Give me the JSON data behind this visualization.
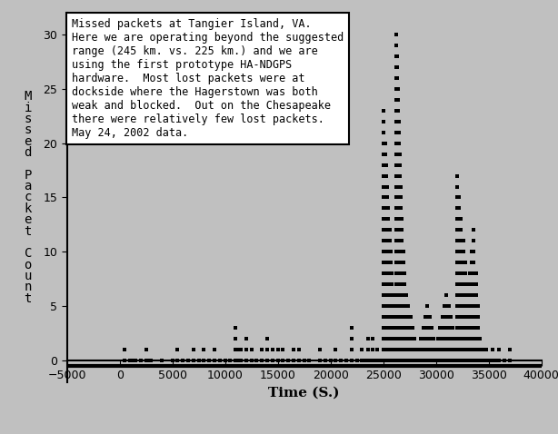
{
  "background_color": "#c0c0c0",
  "plot_bg_color": "#c0c0c0",
  "xlabel": "Time (S.)",
  "ylabel": "M\ni\ns\ns\ne\nd\n\nP\na\nc\nk\ne\nt\n\nC\no\nu\nn\nt",
  "xlim": [
    -5000,
    40000
  ],
  "ylim": [
    -2,
    32
  ],
  "xticks": [
    -5000,
    0,
    5000,
    10000,
    15000,
    20000,
    25000,
    30000,
    35000,
    40000
  ],
  "yticks": [
    0,
    5,
    10,
    15,
    20,
    25,
    30
  ],
  "annotation_text": "Missed packets at Tangier Island, VA.\nHere we are operating beyond the suggested\nrange (245 km. vs. 225 km.) and we are\nusing the first prototype HA-NDGPS\nhardware.  Most lost packets were at\ndockside where the Hagerstown was both\nweak and blocked.  Out on the Chesapeake\nthere were relatively few lost packets.\nMay 24, 2002 data.",
  "spine_y": -0.5,
  "data_x": [
    500,
    1000,
    1200,
    1500,
    2000,
    2500,
    2600,
    3000,
    4000,
    5000,
    5500,
    6000,
    6500,
    7000,
    7500,
    8000,
    8500,
    9000,
    9500,
    10000,
    10500,
    11000,
    11200,
    11500,
    12000,
    12500,
    13000,
    13500,
    14000,
    14500,
    15000,
    15500,
    16000,
    16500,
    17000,
    17500,
    18000,
    19000,
    19500,
    20000,
    20500,
    21000,
    21500,
    22000,
    22500,
    23000,
    23200,
    23400,
    23600,
    23800,
    24000,
    24200,
    24400,
    24600,
    24800,
    25000,
    25200,
    25300,
    25400,
    25500,
    25600,
    25700,
    25800,
    25900,
    26000,
    26100,
    26200,
    26300,
    26400,
    26500,
    26600,
    26700,
    26800,
    26900,
    27000,
    27200,
    27400,
    27600,
    27800,
    28000,
    28200,
    28400,
    28600,
    28800,
    29000,
    29200,
    29400,
    29600,
    29800,
    30000,
    30200,
    30400,
    30600,
    30800,
    31000,
    31200,
    31400,
    31600,
    31800,
    32000,
    32200,
    32400,
    32600,
    32800,
    33000,
    33200,
    33400,
    33600,
    33800,
    34000,
    34200,
    34400,
    34600,
    34800,
    35000,
    35200,
    35400,
    35600,
    36000,
    36500,
    37000
  ],
  "data_y": [
    1,
    0,
    0,
    0,
    0,
    1,
    0,
    0,
    0,
    0,
    1,
    0,
    0,
    1,
    0,
    1,
    0,
    1,
    0,
    0,
    0,
    3,
    1,
    1,
    2,
    1,
    0,
    1,
    2,
    1,
    1,
    1,
    0,
    1,
    1,
    0,
    0,
    1,
    0,
    0,
    1,
    0,
    0,
    3,
    0,
    1,
    0,
    0,
    2,
    0,
    2,
    0,
    1,
    0,
    0,
    23,
    20,
    18,
    16,
    14,
    12,
    10,
    8,
    6,
    5,
    3,
    30,
    28,
    25,
    22,
    19,
    16,
    13,
    10,
    8,
    6,
    5,
    4,
    3,
    2,
    1,
    1,
    2,
    3,
    4,
    5,
    4,
    3,
    2,
    1,
    2,
    3,
    4,
    5,
    6,
    5,
    4,
    3,
    2,
    17,
    15,
    13,
    11,
    9,
    7,
    8,
    10,
    12,
    8,
    5,
    2,
    1,
    0,
    1,
    0,
    0,
    1,
    0,
    1,
    0,
    1
  ],
  "marker_color": "#000000",
  "marker_size": 2.2,
  "axis_fontsize": 10,
  "tick_fontsize": 9,
  "xlabel_fontsize": 11,
  "ylabel_fontsize": 10
}
